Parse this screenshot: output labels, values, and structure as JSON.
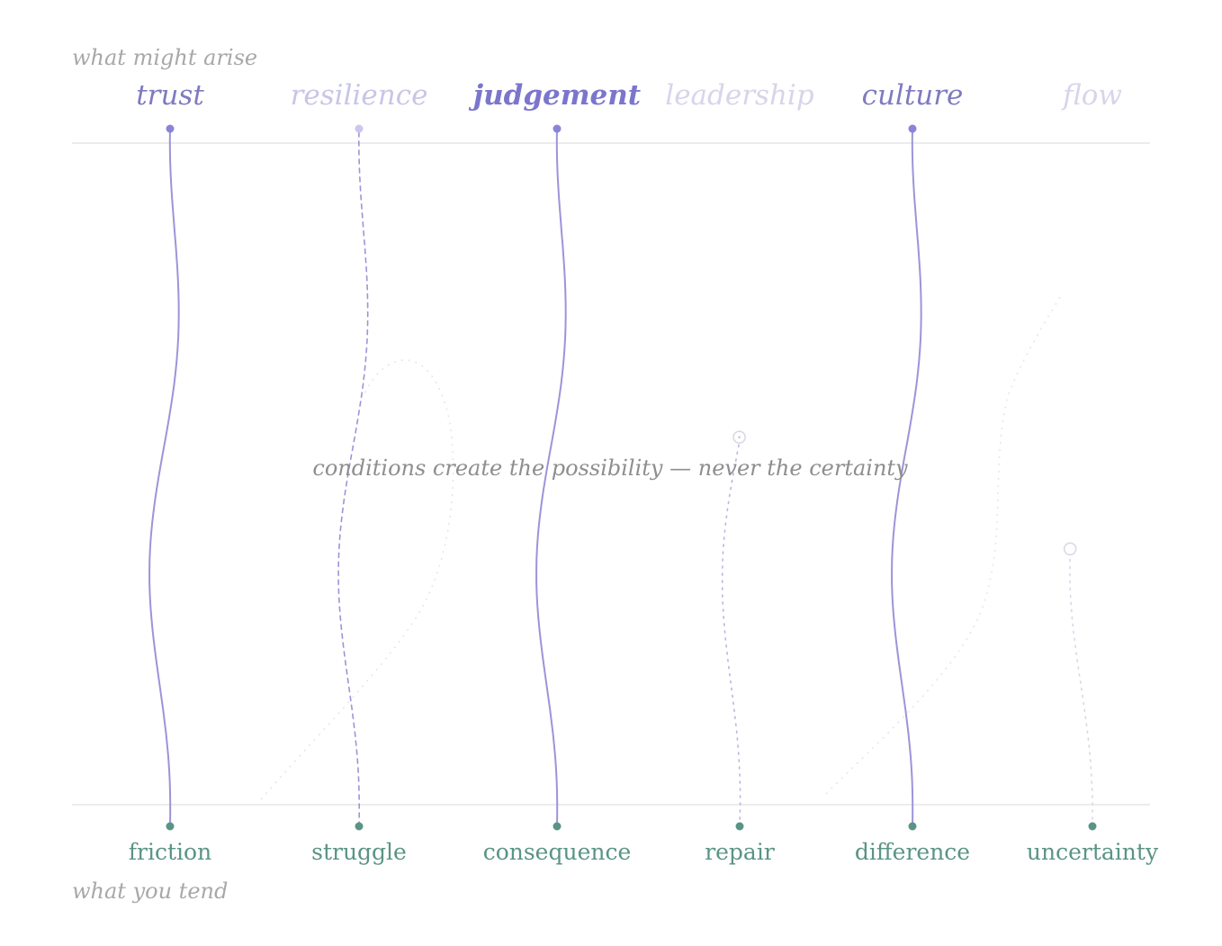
{
  "header": {
    "label": "what might arise"
  },
  "footer": {
    "label": "what you tend"
  },
  "caption": "conditions create the possibility — never the certainty",
  "colors": {
    "arise_strong": "#7f7ac0",
    "arise_faint": "#c8c6e6",
    "arise_fainter": "#d6d5ea",
    "line": "#9b95d8",
    "tend": "#5a9484",
    "rule": "#e6e6e6",
    "side_text": "#a8a8a8",
    "caption_text": "#8e8e8e"
  },
  "arises": [
    {
      "key": "trust",
      "label": "trust",
      "emphasis": "normal"
    },
    {
      "key": "resilience",
      "label": "resilience",
      "emphasis": "faint"
    },
    {
      "key": "judgement",
      "label": "judgement",
      "emphasis": "bold"
    },
    {
      "key": "leadership",
      "label": "leadership",
      "emphasis": "faint"
    },
    {
      "key": "culture",
      "label": "culture",
      "emphasis": "normal"
    },
    {
      "key": "flow",
      "label": "flow",
      "emphasis": "faint"
    }
  ],
  "tends": [
    {
      "key": "friction",
      "label": "friction"
    },
    {
      "key": "struggle",
      "label": "struggle"
    },
    {
      "key": "consequence",
      "label": "consequence"
    },
    {
      "key": "repair",
      "label": "repair"
    },
    {
      "key": "difference",
      "label": "difference"
    },
    {
      "key": "uncertainty",
      "label": "uncertainty"
    }
  ],
  "connections": [
    {
      "from": "friction",
      "to": "trust",
      "state": "complete"
    },
    {
      "from": "struggle",
      "to": "resilience",
      "state": "emerging"
    },
    {
      "from": "consequence",
      "to": "judgement",
      "state": "complete"
    },
    {
      "from": "repair",
      "to": "leadership",
      "state": "partial",
      "progress": 0.55
    },
    {
      "from": "difference",
      "to": "culture",
      "state": "complete"
    },
    {
      "from": "uncertainty",
      "to": "flow",
      "state": "partial",
      "progress": 0.39
    }
  ]
}
